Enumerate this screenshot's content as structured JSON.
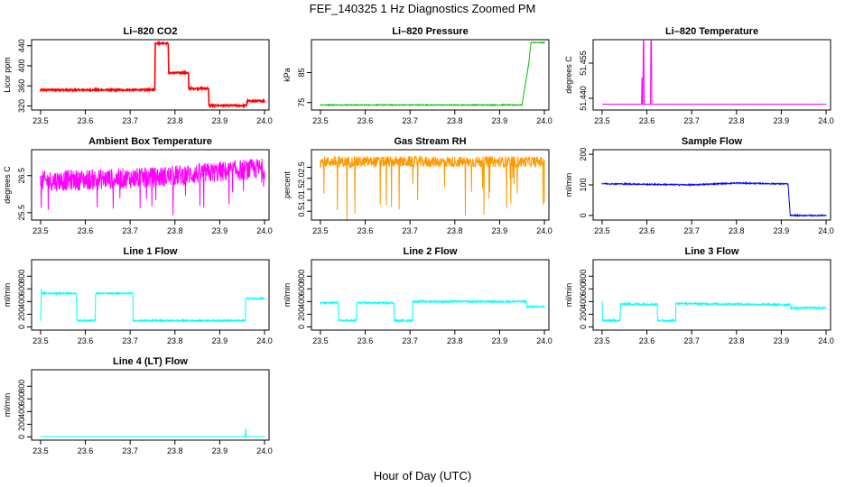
{
  "figure": {
    "title": "FEF_140325  1 Hz Diagnostics Zoomed PM",
    "xlabel": "Hour of Day (UTC)"
  },
  "chart_data": [
    {
      "id": "co2",
      "type": "line",
      "title": "Li–820 CO2",
      "ylabel": "Licor ppm",
      "color": "#ff0000",
      "xlim": [
        23.48,
        24.01
      ],
      "ylim": [
        312,
        452
      ],
      "xticks": [
        "23.5",
        "23.6",
        "23.7",
        "23.8",
        "23.9",
        "24.0"
      ],
      "yticks": [
        "320",
        "360",
        "400",
        "440"
      ],
      "series": [
        {
          "x": [
            23.5,
            23.755,
            23.756,
            23.785,
            23.786,
            23.83,
            23.831,
            23.875,
            23.876,
            23.96,
            23.961,
            24.0
          ],
          "y": [
            352,
            352,
            445,
            445,
            386,
            386,
            355,
            355,
            321,
            321,
            330,
            330
          ],
          "noise": 1.5
        }
      ]
    },
    {
      "id": "pressure",
      "type": "line",
      "title": "Li–820 Pressure",
      "ylabel": "kPa",
      "color": "#00c000",
      "xlim": [
        23.48,
        24.01
      ],
      "ylim": [
        72.5,
        96
      ],
      "xticks": [
        "23.5",
        "23.6",
        "23.7",
        "23.8",
        "23.9",
        "24.0"
      ],
      "yticks": [
        "75",
        "85"
      ],
      "series": [
        {
          "x": [
            23.5,
            23.95,
            23.965,
            23.97,
            24.0
          ],
          "y": [
            74.2,
            74.2,
            88,
            95,
            95
          ],
          "noise": 0.15
        }
      ]
    },
    {
      "id": "licor_temp",
      "type": "line",
      "title": "Li–820 Temperature",
      "ylabel": "degrees C",
      "color": "#ff00ff",
      "xlim": [
        23.48,
        24.01
      ],
      "ylim": [
        51.435,
        51.465
      ],
      "xticks": [
        "23.5",
        "23.6",
        "23.7",
        "23.8",
        "23.9",
        "24.0"
      ],
      "yticks": [
        "51.440",
        "51.455"
      ],
      "series": [
        {
          "x": [
            23.5,
            23.588,
            23.589,
            23.59,
            23.591,
            23.592,
            23.593,
            23.594,
            23.595,
            23.608,
            23.609,
            23.61,
            23.611,
            24.0
          ],
          "y": [
            51.4375,
            51.4375,
            51.449,
            51.4375,
            51.4375,
            51.465,
            51.465,
            51.4375,
            51.4375,
            51.4375,
            51.465,
            51.465,
            51.4375,
            51.4375
          ],
          "noise": 0
        }
      ]
    },
    {
      "id": "box_temp",
      "type": "line",
      "title": "Ambient Box Temperature",
      "ylabel": "degrees C",
      "color": "#ff00ff",
      "xlim": [
        23.48,
        24.01
      ],
      "ylim": [
        25.3,
        27.2
      ],
      "xticks": [
        "23.5",
        "23.6",
        "23.7",
        "23.8",
        "23.9",
        "24.0"
      ],
      "yticks": [
        "25.5",
        "26.5"
      ],
      "series": [
        {
          "x": [
            23.5,
            23.75,
            24.0
          ],
          "y": [
            26.35,
            26.45,
            26.7
          ],
          "noise": 0.28
        }
      ]
    },
    {
      "id": "rh",
      "type": "line",
      "title": "Gas Stream RH",
      "ylabel": "percent",
      "color": "#ff9900",
      "xlim": [
        23.48,
        24.01
      ],
      "ylim": [
        0.1,
        3.3
      ],
      "xticks": [
        "23.5",
        "23.6",
        "23.7",
        "23.8",
        "23.9",
        "24.0"
      ],
      "yticks": [
        "0.5",
        "1.0",
        "1.5",
        "2.0",
        "2.5"
      ],
      "series": [
        {
          "x": [
            23.5,
            24.0
          ],
          "y": [
            2.75,
            2.75
          ],
          "noise": 0.25
        }
      ]
    },
    {
      "id": "sample_flow",
      "type": "line",
      "title": "Sample Flow",
      "ylabel": "ml/min",
      "color": "#0000ff",
      "xlim": [
        23.48,
        24.01
      ],
      "ylim": [
        -15,
        215
      ],
      "xticks": [
        "23.5",
        "23.6",
        "23.7",
        "23.8",
        "23.9",
        "24.0"
      ],
      "yticks": [
        "0",
        "100",
        "200"
      ],
      "series": [
        {
          "x": [
            23.5,
            23.6,
            23.7,
            23.8,
            23.915,
            23.92,
            24.0
          ],
          "y": [
            104,
            102,
            100,
            106,
            103,
            0,
            0
          ],
          "noise": 2
        }
      ]
    },
    {
      "id": "line1",
      "type": "line",
      "title": "Line 1 Flow",
      "ylabel": "ml/min",
      "color": "#00ffff",
      "xlim": [
        23.48,
        24.01
      ],
      "ylim": [
        -50,
        1060
      ],
      "xticks": [
        "23.5",
        "23.6",
        "23.7",
        "23.8",
        "23.9",
        "24.0"
      ],
      "yticks": [
        "0",
        "200",
        "400",
        "600",
        "800"
      ],
      "series": [
        {
          "x": [
            23.5,
            23.502,
            23.503,
            23.58,
            23.581,
            23.622,
            23.623,
            23.706,
            23.707,
            23.957,
            23.958,
            24.0
          ],
          "y": [
            100,
            600,
            530,
            530,
            100,
            100,
            530,
            530,
            100,
            100,
            450,
            450
          ],
          "noise": 12
        }
      ]
    },
    {
      "id": "line2",
      "type": "line",
      "title": "Line 2 Flow",
      "ylabel": "ml/min",
      "color": "#00ffff",
      "xlim": [
        23.48,
        24.01
      ],
      "ylim": [
        -50,
        1060
      ],
      "xticks": [
        "23.5",
        "23.6",
        "23.7",
        "23.8",
        "23.9",
        "24.0"
      ],
      "yticks": [
        "0",
        "200",
        "400",
        "600",
        "800"
      ],
      "series": [
        {
          "x": [
            23.5,
            23.54,
            23.541,
            23.58,
            23.581,
            23.664,
            23.665,
            23.705,
            23.706,
            23.96,
            23.961,
            24.0
          ],
          "y": [
            380,
            380,
            100,
            100,
            380,
            380,
            100,
            100,
            400,
            400,
            320,
            320
          ],
          "noise": 15
        }
      ]
    },
    {
      "id": "line3",
      "type": "line",
      "title": "Line 3 Flow",
      "ylabel": "ml/min",
      "color": "#00ffff",
      "xlim": [
        23.48,
        24.01
      ],
      "ylim": [
        -50,
        1060
      ],
      "xticks": [
        "23.5",
        "23.6",
        "23.7",
        "23.8",
        "23.9",
        "24.0"
      ],
      "yticks": [
        "0",
        "200",
        "400",
        "600",
        "800"
      ],
      "series": [
        {
          "x": [
            23.5,
            23.501,
            23.502,
            23.54,
            23.541,
            23.623,
            23.624,
            23.664,
            23.665,
            23.92,
            23.921,
            24.0
          ],
          "y": [
            400,
            100,
            100,
            100,
            360,
            360,
            100,
            100,
            370,
            350,
            300,
            300
          ],
          "noise": 15
        }
      ]
    },
    {
      "id": "line4",
      "type": "line",
      "title": "Line 4 (LT) Flow",
      "ylabel": "ml/min",
      "color": "#00ffff",
      "xlim": [
        23.48,
        24.01
      ],
      "ylim": [
        -50,
        1060
      ],
      "xticks": [
        "23.5",
        "23.6",
        "23.7",
        "23.8",
        "23.9",
        "24.0"
      ],
      "yticks": [
        "0",
        "200",
        "400",
        "600",
        "800"
      ],
      "series": [
        {
          "x": [
            23.5,
            23.957,
            23.958,
            23.959,
            24.0
          ],
          "y": [
            5,
            5,
            130,
            5,
            5
          ],
          "noise": 1
        }
      ]
    }
  ]
}
